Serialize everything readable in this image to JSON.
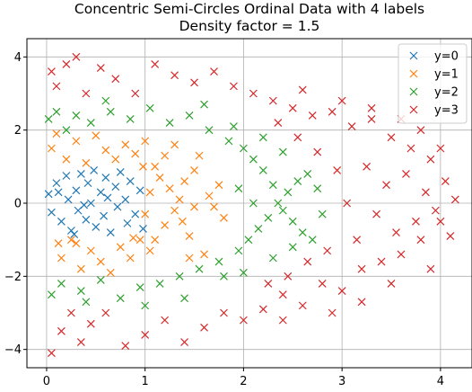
{
  "chart_data": {
    "type": "scatter",
    "title_line1": "Concentric Semi-Circles Ordinal Data with 4 labels",
    "title_line2": "Density factor = 1.5",
    "xlabel": "",
    "ylabel": "",
    "xlim": [
      -0.2,
      4.32
    ],
    "ylim": [
      -4.5,
      4.5
    ],
    "xticks": [
      0,
      1,
      2,
      3,
      4
    ],
    "yticks": [
      -4,
      -2,
      0,
      2,
      4
    ],
    "grid": true,
    "legend_position": "top-right",
    "marker": "x",
    "series": [
      {
        "name": "y=0",
        "color": "#1f77b4",
        "points": [
          [
            0.02,
            0.25
          ],
          [
            0.05,
            -0.25
          ],
          [
            0.1,
            0.55
          ],
          [
            0.15,
            -0.5
          ],
          [
            0.2,
            0.75
          ],
          [
            0.22,
            0.1
          ],
          [
            0.25,
            -0.75
          ],
          [
            0.3,
            0.35
          ],
          [
            0.32,
            -0.2
          ],
          [
            0.35,
            0.8
          ],
          [
            0.4,
            -0.45
          ],
          [
            0.42,
            0.55
          ],
          [
            0.45,
            0.0
          ],
          [
            0.5,
            -0.65
          ],
          [
            0.55,
            0.3
          ],
          [
            0.58,
            -0.35
          ],
          [
            0.6,
            0.7
          ],
          [
            0.65,
            -0.8
          ],
          [
            0.7,
            0.45
          ],
          [
            0.72,
            -0.1
          ],
          [
            0.75,
            0.85
          ],
          [
            0.8,
            0.1
          ],
          [
            0.82,
            -0.55
          ],
          [
            0.85,
            0.6
          ],
          [
            0.9,
            -0.3
          ],
          [
            0.95,
            0.35
          ],
          [
            0.98,
            -0.7
          ],
          [
            0.12,
            0.3
          ],
          [
            0.28,
            -0.85
          ],
          [
            0.48,
            0.9
          ],
          [
            0.62,
            0.15
          ],
          [
            0.38,
            -0.05
          ]
        ]
      },
      {
        "name": "y=1",
        "color": "#ff7f0e",
        "points": [
          [
            0.05,
            1.5
          ],
          [
            0.1,
            1.9
          ],
          [
            0.15,
            -1.5
          ],
          [
            0.2,
            1.2
          ],
          [
            0.25,
            -1.0
          ],
          [
            0.3,
            1.7
          ],
          [
            0.35,
            -1.8
          ],
          [
            0.4,
            1.1
          ],
          [
            0.45,
            -1.3
          ],
          [
            0.5,
            1.85
          ],
          [
            0.55,
            -1.6
          ],
          [
            0.6,
            1.45
          ],
          [
            0.65,
            -1.9
          ],
          [
            0.7,
            1.2
          ],
          [
            0.75,
            -1.2
          ],
          [
            0.8,
            1.6
          ],
          [
            0.85,
            -1.5
          ],
          [
            0.9,
            1.35
          ],
          [
            0.95,
            -1.0
          ],
          [
            1.0,
            1.7
          ],
          [
            1.05,
            -1.3
          ],
          [
            1.1,
            1.0
          ],
          [
            1.15,
            0.7
          ],
          [
            1.2,
            -0.6
          ],
          [
            1.25,
            0.4
          ],
          [
            1.3,
            -0.2
          ],
          [
            1.35,
            0.1
          ],
          [
            1.38,
            -0.5
          ],
          [
            1.4,
            0.6
          ],
          [
            1.45,
            -0.9
          ],
          [
            1.5,
            0.9
          ],
          [
            1.55,
            1.3
          ],
          [
            1.6,
            -1.4
          ],
          [
            1.65,
            0.2
          ],
          [
            1.7,
            -0.1
          ],
          [
            1.75,
            0.5
          ],
          [
            1.8,
            -0.4
          ],
          [
            1.5,
            -0.1
          ],
          [
            1.2,
            1.3
          ],
          [
            1.1,
            -1.0
          ],
          [
            0.98,
            1.0
          ],
          [
            0.88,
            -0.95
          ],
          [
            0.3,
            -1.1
          ],
          [
            0.12,
            -1.1
          ],
          [
            1.0,
            -0.3
          ],
          [
            1.05,
            0.3
          ],
          [
            1.3,
            1.6
          ],
          [
            1.45,
            -1.5
          ]
        ]
      },
      {
        "name": "y=2",
        "color": "#2ca02c",
        "points": [
          [
            0.02,
            2.3
          ],
          [
            0.05,
            -2.5
          ],
          [
            0.1,
            2.5
          ],
          [
            0.15,
            -2.2
          ],
          [
            0.2,
            2.0
          ],
          [
            0.3,
            2.4
          ],
          [
            0.35,
            -2.4
          ],
          [
            0.45,
            2.2
          ],
          [
            0.55,
            -2.1
          ],
          [
            0.65,
            2.5
          ],
          [
            0.75,
            -2.6
          ],
          [
            0.85,
            2.3
          ],
          [
            0.95,
            -2.3
          ],
          [
            1.05,
            2.6
          ],
          [
            1.15,
            -2.2
          ],
          [
            1.25,
            2.2
          ],
          [
            1.35,
            -2.0
          ],
          [
            1.45,
            2.4
          ],
          [
            1.55,
            -1.8
          ],
          [
            1.65,
            2.0
          ],
          [
            1.75,
            -1.6
          ],
          [
            1.85,
            1.7
          ],
          [
            1.95,
            -1.3
          ],
          [
            2.0,
            1.5
          ],
          [
            2.05,
            -1.0
          ],
          [
            2.1,
            1.2
          ],
          [
            2.15,
            -0.7
          ],
          [
            2.2,
            0.9
          ],
          [
            2.25,
            -0.4
          ],
          [
            2.3,
            0.5
          ],
          [
            2.35,
            0.0
          ],
          [
            2.4,
            -0.2
          ],
          [
            2.45,
            0.3
          ],
          [
            2.5,
            -0.5
          ],
          [
            2.55,
            0.6
          ],
          [
            2.6,
            -0.8
          ],
          [
            2.65,
            0.8
          ],
          [
            2.7,
            -1.0
          ],
          [
            2.75,
            0.4
          ],
          [
            2.8,
            -0.3
          ],
          [
            1.9,
            2.1
          ],
          [
            1.8,
            -2.0
          ],
          [
            2.0,
            -1.9
          ],
          [
            2.2,
            1.8
          ],
          [
            2.3,
            -1.5
          ],
          [
            2.4,
            1.4
          ],
          [
            2.5,
            -1.2
          ],
          [
            1.6,
            2.7
          ],
          [
            1.4,
            -2.6
          ],
          [
            1.0,
            -2.8
          ],
          [
            0.6,
            2.8
          ],
          [
            0.4,
            -2.7
          ],
          [
            2.1,
            0.0
          ],
          [
            1.95,
            0.4
          ]
        ]
      },
      {
        "name": "y=3",
        "color": "#d62728",
        "points": [
          [
            0.05,
            3.6
          ],
          [
            0.05,
            -4.1
          ],
          [
            0.1,
            3.2
          ],
          [
            0.15,
            -3.5
          ],
          [
            0.2,
            3.8
          ],
          [
            0.25,
            -3.0
          ],
          [
            0.3,
            4.0
          ],
          [
            0.35,
            -3.8
          ],
          [
            0.4,
            3.0
          ],
          [
            0.45,
            -3.3
          ],
          [
            0.55,
            3.7
          ],
          [
            0.6,
            -3.0
          ],
          [
            0.7,
            3.4
          ],
          [
            0.8,
            -3.9
          ],
          [
            0.9,
            3.0
          ],
          [
            1.0,
            -3.6
          ],
          [
            1.1,
            3.8
          ],
          [
            1.2,
            -3.2
          ],
          [
            1.3,
            3.5
          ],
          [
            1.4,
            -3.8
          ],
          [
            1.5,
            3.3
          ],
          [
            1.6,
            -3.4
          ],
          [
            1.7,
            3.6
          ],
          [
            1.8,
            -3.0
          ],
          [
            1.9,
            3.2
          ],
          [
            2.0,
            -3.2
          ],
          [
            2.1,
            3.0
          ],
          [
            2.2,
            -2.9
          ],
          [
            2.3,
            2.8
          ],
          [
            2.4,
            -2.5
          ],
          [
            2.5,
            2.6
          ],
          [
            2.6,
            -2.8
          ],
          [
            2.7,
            2.4
          ],
          [
            2.8,
            -2.2
          ],
          [
            2.9,
            2.5
          ],
          [
            3.0,
            -2.4
          ],
          [
            3.1,
            2.1
          ],
          [
            3.2,
            -1.8
          ],
          [
            3.3,
            2.3
          ],
          [
            3.4,
            -1.6
          ],
          [
            3.5,
            1.8
          ],
          [
            3.6,
            -1.4
          ],
          [
            3.7,
            1.5
          ],
          [
            3.8,
            -1.0
          ],
          [
            3.9,
            1.2
          ],
          [
            4.0,
            -0.5
          ],
          [
            4.05,
            0.6
          ],
          [
            4.1,
            -0.9
          ],
          [
            4.15,
            0.1
          ],
          [
            3.95,
            -0.2
          ],
          [
            3.85,
            0.3
          ],
          [
            3.75,
            -0.5
          ],
          [
            3.65,
            0.8
          ],
          [
            3.55,
            -0.8
          ],
          [
            3.45,
            0.5
          ],
          [
            3.35,
            -0.3
          ],
          [
            3.25,
            1.0
          ],
          [
            3.15,
            -1.0
          ],
          [
            3.05,
            0.0
          ],
          [
            2.95,
            0.9
          ],
          [
            2.85,
            -1.3
          ],
          [
            2.75,
            1.4
          ],
          [
            2.65,
            -1.6
          ],
          [
            2.55,
            1.8
          ],
          [
            2.45,
            -2.0
          ],
          [
            2.35,
            2.2
          ],
          [
            2.25,
            -2.2
          ],
          [
            3.0,
            2.8
          ],
          [
            3.3,
            2.6
          ],
          [
            3.6,
            2.3
          ],
          [
            3.5,
            -2.2
          ],
          [
            3.2,
            -2.7
          ],
          [
            2.9,
            -3.0
          ],
          [
            2.6,
            3.1
          ],
          [
            2.4,
            -3.2
          ],
          [
            3.8,
            2.0
          ],
          [
            3.9,
            -1.8
          ],
          [
            4.0,
            1.5
          ]
        ]
      }
    ]
  }
}
